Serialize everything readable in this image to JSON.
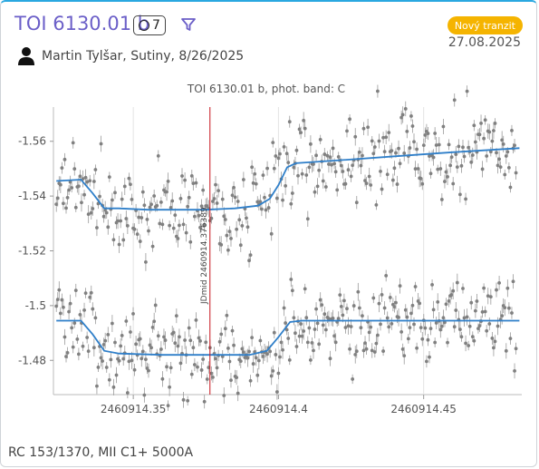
{
  "header": {
    "title": "TOI 6130.01 b",
    "observation_count": "7",
    "badge_label": "Nový tranzit",
    "badge_color": "#f5b400",
    "date": "27.08.2025",
    "observer": "Martin Tylšar, Sutiny, 8/26/2025",
    "title_color": "#6b5fc8"
  },
  "footer": {
    "info": "RC 153/1370, MII C1+ 5000A"
  },
  "chart_data": {
    "type": "scatter",
    "title": "TOI 6130.01 b, phot. band: C",
    "xlim": [
      2460914.3225,
      2460914.4838
    ],
    "ylim": [
      -1.4675,
      -1.5725
    ],
    "y_inverted": true,
    "x_ticks": [
      2460914.35,
      2460914.4,
      2460914.45
    ],
    "x_tick_labels": [
      "2460914.35",
      "2460914.4",
      "2460914.45"
    ],
    "y_ticks": [
      -1.56,
      -1.54,
      -1.52,
      -1.5,
      -1.48
    ],
    "y_tick_labels": [
      "-1.56",
      "-1.54",
      "-1.52",
      "-1.5",
      "-1.48"
    ],
    "marker": {
      "x": 2460914.3764,
      "label": "JDmid 2460914.376389",
      "color": "#c8161d"
    },
    "series": [
      {
        "points_color": "#808080",
        "model_color": "#2f7fc9",
        "noise_sd": 0.0085,
        "model": [
          [
            2460914.3235,
            -1.5455
          ],
          [
            2460914.332,
            -1.546
          ],
          [
            2460914.336,
            -1.541
          ],
          [
            2460914.34,
            -1.5355
          ],
          [
            2460914.345,
            -1.5355
          ],
          [
            2460914.355,
            -1.535
          ],
          [
            2460914.365,
            -1.535
          ],
          [
            2460914.375,
            -1.535
          ],
          [
            2460914.385,
            -1.5355
          ],
          [
            2460914.393,
            -1.5365
          ],
          [
            2460914.397,
            -1.539
          ],
          [
            2460914.4,
            -1.544
          ],
          [
            2460914.403,
            -1.5505
          ],
          [
            2460914.406,
            -1.552
          ],
          [
            2460914.42,
            -1.553
          ],
          [
            2460914.44,
            -1.5545
          ],
          [
            2460914.46,
            -1.556
          ],
          [
            2460914.483,
            -1.5575
          ]
        ]
      },
      {
        "points_color": "#808080",
        "model_color": "#2f7fc9",
        "noise_sd": 0.008,
        "model": [
          [
            2460914.3235,
            -1.4945
          ],
          [
            2460914.332,
            -1.4945
          ],
          [
            2460914.336,
            -1.4895
          ],
          [
            2460914.34,
            -1.4835
          ],
          [
            2460914.345,
            -1.4825
          ],
          [
            2460914.36,
            -1.482
          ],
          [
            2460914.375,
            -1.482
          ],
          [
            2460914.39,
            -1.482
          ],
          [
            2460914.396,
            -1.4835
          ],
          [
            2460914.4,
            -1.4885
          ],
          [
            2460914.404,
            -1.494
          ],
          [
            2460914.408,
            -1.4945
          ],
          [
            2460914.44,
            -1.4945
          ],
          [
            2460914.483,
            -1.4945
          ]
        ]
      }
    ]
  }
}
